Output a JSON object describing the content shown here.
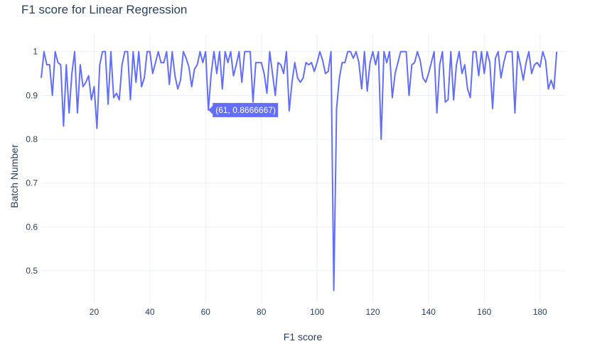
{
  "chart_data": {
    "type": "line",
    "title": "F1 score for Linear Regression",
    "xlabel": "F1 score",
    "ylabel": "Batch Number",
    "xlim": [
      1,
      189
    ],
    "ylim": [
      0.44,
      1.04
    ],
    "x_ticks": [
      20,
      40,
      60,
      80,
      100,
      120,
      140,
      160,
      180
    ],
    "y_ticks": [
      0.5,
      0.6,
      0.7,
      0.8,
      0.9,
      1
    ],
    "grid": true,
    "line_color": "#636efa",
    "hover": {
      "x": 61,
      "y": 0.8666667,
      "label": "(61, 0.8666667)"
    },
    "x_start": 1,
    "y": [
      0.94,
      1.0,
      0.97,
      0.97,
      0.9,
      1.0,
      0.975,
      0.97,
      0.83,
      0.97,
      0.86,
      0.95,
      1.0,
      0.86,
      0.97,
      0.92,
      0.93,
      0.945,
      0.89,
      0.92,
      0.825,
      0.97,
      1.0,
      1.0,
      0.88,
      1.0,
      0.895,
      0.905,
      0.89,
      0.97,
      1.0,
      1.0,
      0.89,
      1.0,
      0.93,
      1.0,
      0.92,
      0.94,
      1.0,
      1.0,
      0.95,
      0.975,
      1.0,
      0.975,
      0.975,
      1.0,
      0.925,
      1.0,
      0.945,
      0.915,
      0.935,
      1.0,
      0.985,
      0.965,
      0.92,
      0.96,
      0.97,
      1.0,
      0.975,
      1.0,
      0.8666667,
      0.95,
      1.0,
      0.95,
      1.0,
      0.915,
      1.0,
      0.975,
      1.0,
      0.945,
      0.97,
      1.0,
      0.93,
      1.0,
      1.0,
      1.0,
      0.885,
      0.975,
      0.975,
      0.975,
      0.95,
      0.905,
      1.0,
      0.95,
      0.9,
      0.975,
      0.97,
      0.95,
      1.0,
      0.865,
      0.93,
      0.975,
      0.94,
      0.93,
      0.94,
      0.975,
      0.97,
      0.975,
      0.955,
      0.975,
      1.0,
      0.98,
      0.95,
      0.955,
      1.0,
      0.455,
      0.87,
      0.94,
      0.975,
      0.975,
      1.0,
      1.0,
      0.985,
      1.0,
      0.975,
      0.915,
      1.0,
      0.91,
      0.975,
      1.0,
      0.97,
      1.0,
      0.8,
      1.0,
      0.975,
      1.0,
      0.895,
      0.95,
      0.975,
      1.0,
      1.0,
      1.0,
      0.9,
      0.97,
      0.975,
      1.0,
      0.98,
      0.94,
      0.93,
      0.95,
      0.975,
      1.0,
      0.86,
      0.97,
      1.0,
      0.885,
      0.89,
      1.0,
      0.89,
      0.97,
      1.0,
      0.95,
      0.97,
      0.915,
      0.895,
      1.0,
      1.0,
      0.945,
      1.0,
      0.95,
      1.0,
      0.975,
      0.87,
      0.985,
      1.0,
      0.94,
      0.975,
      1.0,
      1.0,
      1.0,
      0.86,
      1.0,
      0.97,
      0.935,
      0.975,
      1.0,
      0.95,
      0.97,
      0.975,
      0.965,
      1.0,
      0.98,
      0.915,
      0.935,
      0.915,
      1.0
    ]
  }
}
